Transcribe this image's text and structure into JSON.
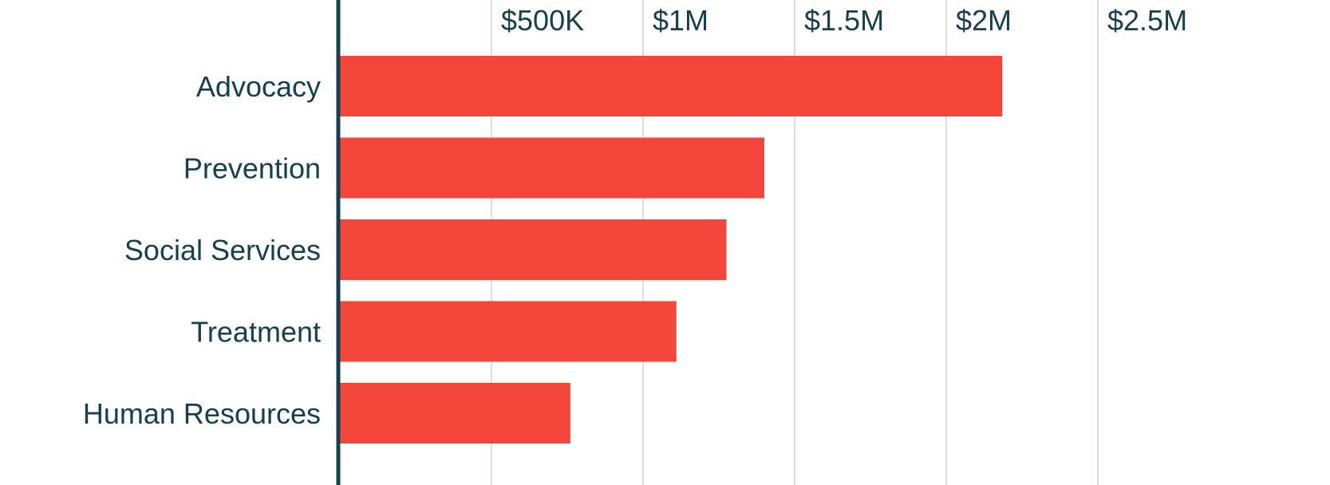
{
  "chart_data": {
    "type": "bar",
    "orientation": "horizontal",
    "categories": [
      "Advocacy",
      "Prevention",
      "Social Services",
      "Treatment",
      "Human Resources"
    ],
    "values": [
      2185000,
      1400000,
      1275000,
      1110000,
      760000
    ],
    "x_ticks": [
      {
        "value": 500000,
        "label": "$500K"
      },
      {
        "value": 1000000,
        "label": "$1M"
      },
      {
        "value": 1500000,
        "label": "$1.5M"
      },
      {
        "value": 2000000,
        "label": "$2M"
      },
      {
        "value": 2500000,
        "label": "$2.5M"
      }
    ],
    "xlim": [
      0,
      3000000
    ],
    "grid": true,
    "title": "",
    "xlabel": "",
    "ylabel": "",
    "colors": {
      "bar": "#f4453b",
      "axis": "#17404f",
      "grid": "#d3d3d3",
      "text": "#17404f"
    }
  }
}
